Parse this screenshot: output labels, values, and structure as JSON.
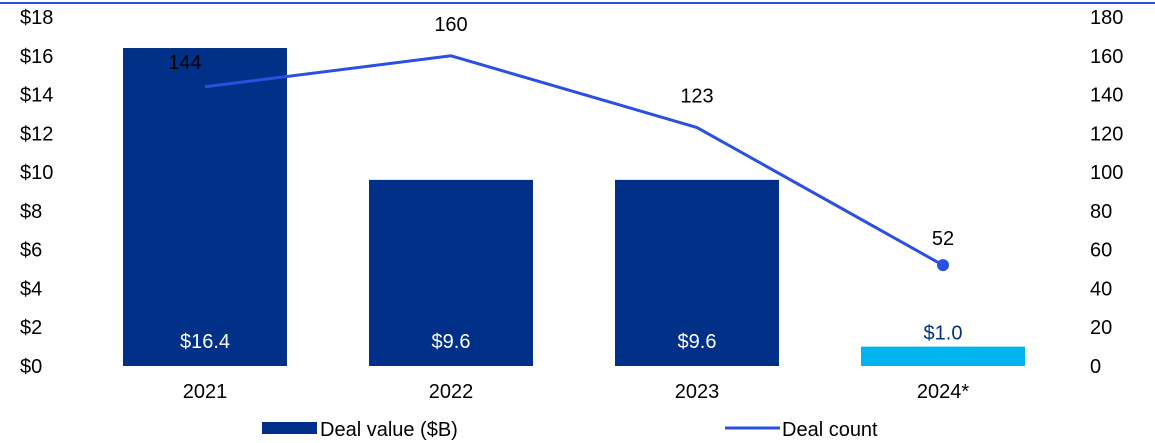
{
  "chart_data": {
    "type": "bar",
    "categories": [
      "2021",
      "2022",
      "2023",
      "2024*"
    ],
    "series": [
      {
        "name": "Deal value ($B)",
        "type": "bar",
        "axis": "left",
        "values": [
          16.4,
          9.6,
          9.6,
          1.0
        ],
        "labels": [
          "$16.4",
          "$9.6",
          "$9.6",
          "$1.0"
        ],
        "colors": [
          "#003087",
          "#003087",
          "#003087",
          "#00B5EF"
        ]
      },
      {
        "name": "Deal count",
        "type": "line",
        "axis": "right",
        "values": [
          144,
          160,
          123,
          52
        ],
        "labels": [
          "144",
          "160",
          "123",
          "52"
        ],
        "color": "#2B50E0"
      }
    ],
    "y_left": {
      "min": 0,
      "max": 18,
      "ticks": [
        "$0",
        "$2",
        "$4",
        "$6",
        "$8",
        "$10",
        "$12",
        "$14",
        "$16",
        "$18"
      ]
    },
    "y_right": {
      "min": 0,
      "max": 180,
      "ticks": [
        "0",
        "20",
        "40",
        "60",
        "80",
        "100",
        "120",
        "140",
        "160",
        "180"
      ]
    },
    "legend": {
      "position": "bottom",
      "items": [
        "Deal value ($B)",
        "Deal count"
      ]
    },
    "grid": false,
    "top_rule_color": "#2B50E0"
  }
}
